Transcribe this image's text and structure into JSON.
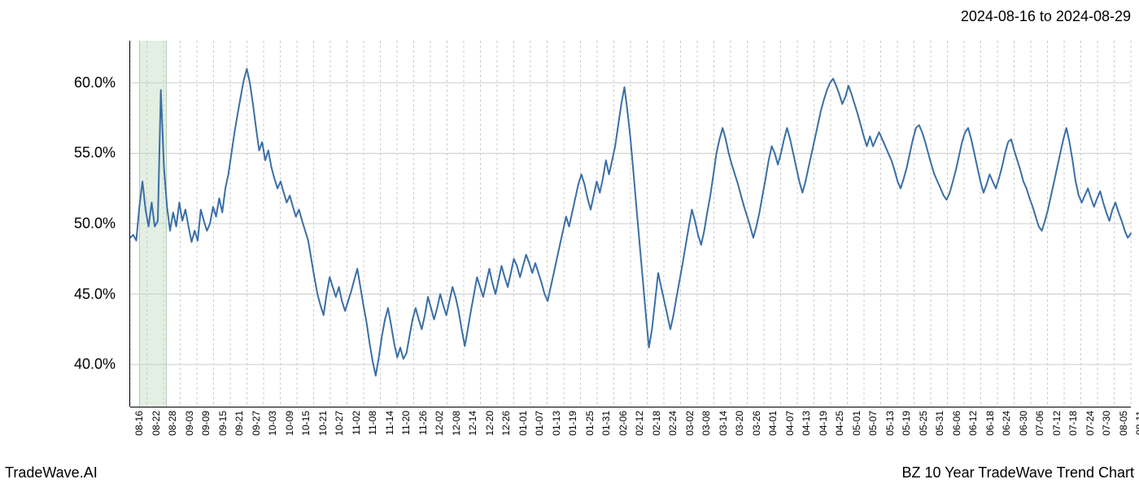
{
  "header": {
    "date_range": "2024-08-16 to 2024-08-29"
  },
  "footer": {
    "left": "TradeWave.AI",
    "right": "BZ 10 Year TradeWave Trend Chart"
  },
  "chart": {
    "type": "line",
    "background_color": "#ffffff",
    "line_color": "#3a6fa5",
    "line_width": 2,
    "grid_color": "#cccccc",
    "grid_dash": "3,3",
    "axis_color": "#000000",
    "highlight_band_color": "rgba(144,190,144,0.25)",
    "ylim": [
      37,
      63
    ],
    "yticks": [
      40,
      45,
      50,
      55,
      60
    ],
    "ytick_labels": [
      "40.0%",
      "45.0%",
      "50.0%",
      "55.0%",
      "60.0%"
    ],
    "label_fontsize": 18,
    "xtick_fontsize": 12,
    "xtick_rotation": -90,
    "highlight_band": {
      "start_index": 3,
      "end_index": 12
    },
    "x_labels": [
      "08-16",
      "08-22",
      "08-28",
      "09-03",
      "09-09",
      "09-15",
      "09-21",
      "09-27",
      "10-03",
      "10-09",
      "10-15",
      "10-21",
      "10-27",
      "11-02",
      "11-08",
      "11-14",
      "11-20",
      "11-26",
      "12-02",
      "12-08",
      "12-14",
      "12-20",
      "12-26",
      "01-01",
      "01-07",
      "01-13",
      "01-19",
      "01-25",
      "01-31",
      "02-06",
      "02-12",
      "02-18",
      "02-24",
      "03-02",
      "03-08",
      "03-14",
      "03-20",
      "03-26",
      "04-01",
      "04-07",
      "04-13",
      "04-19",
      "04-25",
      "05-01",
      "05-07",
      "05-13",
      "05-19",
      "05-25",
      "05-31",
      "06-06",
      "06-12",
      "06-18",
      "06-24",
      "06-30",
      "07-06",
      "07-12",
      "07-18",
      "07-24",
      "07-30",
      "08-05",
      "08-11"
    ],
    "values": [
      49.0,
      49.2,
      48.8,
      51.2,
      53.0,
      51.0,
      49.8,
      51.5,
      49.8,
      50.2,
      59.5,
      54.0,
      51.2,
      49.5,
      50.8,
      49.8,
      51.5,
      50.2,
      51.0,
      49.8,
      48.7,
      49.5,
      48.8,
      51.0,
      50.2,
      49.5,
      50.0,
      51.2,
      50.5,
      51.8,
      50.8,
      52.5,
      53.5,
      55.0,
      56.5,
      57.8,
      59.0,
      60.2,
      61.0,
      60.0,
      58.5,
      56.8,
      55.2,
      55.8,
      54.5,
      55.2,
      54.0,
      53.2,
      52.5,
      53.0,
      52.2,
      51.5,
      52.0,
      51.2,
      50.5,
      51.0,
      50.2,
      49.5,
      48.8,
      47.5,
      46.2,
      45.0,
      44.2,
      43.5,
      45.0,
      46.2,
      45.5,
      44.8,
      45.5,
      44.5,
      43.8,
      44.5,
      45.2,
      46.0,
      46.8,
      45.5,
      44.2,
      43.0,
      41.5,
      40.2,
      39.2,
      40.5,
      42.0,
      43.2,
      44.0,
      42.8,
      41.5,
      40.5,
      41.2,
      40.4,
      40.8,
      42.0,
      43.2,
      44.0,
      43.2,
      42.5,
      43.5,
      44.8,
      44.0,
      43.2,
      44.0,
      45.0,
      44.2,
      43.5,
      44.5,
      45.5,
      44.8,
      43.8,
      42.5,
      41.3,
      42.5,
      43.8,
      45.0,
      46.2,
      45.5,
      44.8,
      45.8,
      46.8,
      45.8,
      45.0,
      46.0,
      47.0,
      46.2,
      45.5,
      46.5,
      47.5,
      47.0,
      46.2,
      47.0,
      47.8,
      47.2,
      46.5,
      47.2,
      46.5,
      45.8,
      45.0,
      44.5,
      45.5,
      46.5,
      47.5,
      48.5,
      49.5,
      50.5,
      49.8,
      50.8,
      51.8,
      52.8,
      53.5,
      52.8,
      51.8,
      51.0,
      52.0,
      53.0,
      52.2,
      53.2,
      54.5,
      53.5,
      54.5,
      55.5,
      57.0,
      58.5,
      59.7,
      58.0,
      56.0,
      53.5,
      51.0,
      48.5,
      46.0,
      43.5,
      41.2,
      42.5,
      44.5,
      46.5,
      45.5,
      44.5,
      43.5,
      42.5,
      43.5,
      44.8,
      46.0,
      47.2,
      48.5,
      49.8,
      51.0,
      50.2,
      49.2,
      48.5,
      49.5,
      50.8,
      52.0,
      53.5,
      55.0,
      56.0,
      56.8,
      56.0,
      55.0,
      54.2,
      53.5,
      52.8,
      52.0,
      51.2,
      50.5,
      49.8,
      49.0,
      49.8,
      50.8,
      52.0,
      53.2,
      54.5,
      55.5,
      55.0,
      54.2,
      55.0,
      56.0,
      56.8,
      56.0,
      55.0,
      54.0,
      53.0,
      52.2,
      53.0,
      54.0,
      55.0,
      56.0,
      57.0,
      58.0,
      58.8,
      59.5,
      60.0,
      60.3,
      59.8,
      59.2,
      58.5,
      59.0,
      59.8,
      59.2,
      58.5,
      57.8,
      57.0,
      56.2,
      55.5,
      56.2,
      55.5,
      56.0,
      56.5,
      56.0,
      55.5,
      55.0,
      54.5,
      53.8,
      53.0,
      52.5,
      53.2,
      54.0,
      55.0,
      56.0,
      56.8,
      57.0,
      56.5,
      55.8,
      55.0,
      54.2,
      53.5,
      53.0,
      52.5,
      52.0,
      51.7,
      52.2,
      53.0,
      53.8,
      54.8,
      55.8,
      56.5,
      56.8,
      56.0,
      55.0,
      54.0,
      53.0,
      52.2,
      52.8,
      53.5,
      53.0,
      52.5,
      53.2,
      54.0,
      55.0,
      55.8,
      56.0,
      55.2,
      54.5,
      53.8,
      53.0,
      52.5,
      51.8,
      51.2,
      50.5,
      49.8,
      49.5,
      50.2,
      51.0,
      52.0,
      53.0,
      54.0,
      55.0,
      56.0,
      56.8,
      55.8,
      54.5,
      53.0,
      52.0,
      51.5,
      52.0,
      52.5,
      51.8,
      51.2,
      51.8,
      52.3,
      51.5,
      50.8,
      50.2,
      51.0,
      51.5,
      50.8,
      50.2,
      49.5,
      49.0,
      49.3
    ]
  }
}
